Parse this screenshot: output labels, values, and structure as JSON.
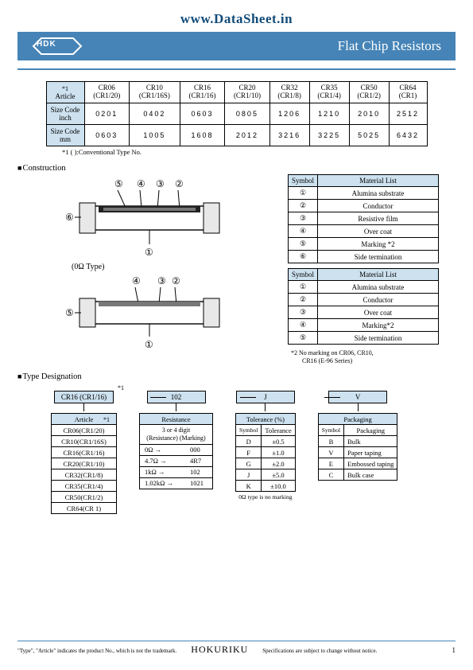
{
  "website": "www.DataSheet.in",
  "logo": "HDK",
  "title": "Flat Chip Resistors",
  "main_table": {
    "header_note": "*1",
    "row_labels": [
      "Article",
      "Size Code inch",
      "Size Code mm"
    ],
    "cols": [
      {
        "art": "CR06",
        "conv": "(CR1/20)",
        "inch": "0201",
        "mm": "0603"
      },
      {
        "art": "CR10",
        "conv": "(CR1/16S)",
        "inch": "0402",
        "mm": "1005"
      },
      {
        "art": "CR16",
        "conv": "(CR1/16)",
        "inch": "0603",
        "mm": "1608"
      },
      {
        "art": "CR20",
        "conv": "(CR1/10)",
        "inch": "0805",
        "mm": "2012"
      },
      {
        "art": "CR32",
        "conv": "(CR1/8)",
        "inch": "1206",
        "mm": "3216"
      },
      {
        "art": "CR35",
        "conv": "(CR1/4)",
        "inch": "1210",
        "mm": "3225"
      },
      {
        "art": "CR50",
        "conv": "(CR1/2)",
        "inch": "2010",
        "mm": "5025"
      },
      {
        "art": "CR64",
        "conv": "(CR1)",
        "inch": "2512",
        "mm": "6432"
      }
    ],
    "footnote": "*1 (  ):Conventional Type No."
  },
  "section_construction": "Construction",
  "zero_label": "(0Ω Type)",
  "material_table1": {
    "hdr_symbol": "Symbol",
    "hdr_mat": "Material List",
    "rows": [
      {
        "s": "①",
        "m": "Alumina substrate"
      },
      {
        "s": "②",
        "m": "Conductor"
      },
      {
        "s": "③",
        "m": "Resistive film"
      },
      {
        "s": "④",
        "m": "Over coat"
      },
      {
        "s": "⑤",
        "m": "Marking *2"
      },
      {
        "s": "⑥",
        "m": "Side termination"
      }
    ]
  },
  "material_table2": {
    "hdr_symbol": "Symbol",
    "hdr_mat": "Material List",
    "rows": [
      {
        "s": "①",
        "m": "Alumina substrate"
      },
      {
        "s": "②",
        "m": "Conductor"
      },
      {
        "s": "③",
        "m": "Over coat"
      },
      {
        "s": "④",
        "m": "Marking*2"
      },
      {
        "s": "⑤",
        "m": "Side termination"
      }
    ]
  },
  "note2_a": "*2 No marking on CR06, CR10,",
  "note2_b": "CR16 (E-96 Series)",
  "section_type": "Type Designation",
  "star1": "*1",
  "designation": {
    "heads": [
      "CR16 (CR1/16)",
      "102",
      "J",
      "V"
    ]
  },
  "article_table": {
    "hdr": "Article",
    "note": "*1",
    "rows": [
      "CR06(CR1/20)",
      "CR10(CR1/16S)",
      "CR16(CR1/16)",
      "CR20(CR1/10)",
      "CR32(CR1/8)",
      "CR35(CR1/4)",
      "CR50(CR1/2)",
      "CR64(CR 1)"
    ]
  },
  "resistance_table": {
    "hdr": "Resistance",
    "desc": "3 or 4 digit",
    "desc2": "(Resistance)   (Marking)",
    "rows": [
      {
        "r": "0Ω",
        "m": "000"
      },
      {
        "r": "4.7Ω",
        "m": "4R7"
      },
      {
        "r": "1kΩ",
        "m": "102"
      },
      {
        "r": "1.02kΩ",
        "m": "1021"
      }
    ]
  },
  "tolerance_table": {
    "hdr": "Tolerance (%)",
    "sub_hdr_s": "Symbol",
    "sub_hdr_t": "Tolerance",
    "rows": [
      {
        "s": "D",
        "t": "±0.5"
      },
      {
        "s": "F",
        "t": "±1.0"
      },
      {
        "s": "G",
        "t": "±2.0"
      },
      {
        "s": "J",
        "t": "±5.0"
      },
      {
        "s": "K",
        "t": "±10.0"
      }
    ],
    "note": "0Ω type is no marking"
  },
  "packaging_table": {
    "hdr": "Packaging",
    "sub_hdr_s": "Symbol",
    "sub_hdr_p": "Packaging",
    "rows": [
      {
        "s": "B",
        "p": "Bulk"
      },
      {
        "s": "V",
        "p": "Paper taping"
      },
      {
        "s": "E",
        "p": "Embossed taping"
      },
      {
        "s": "C",
        "p": "Bulk case"
      }
    ]
  },
  "footer": {
    "left": "\"Type\", \"Article\" indicates the product No., which is not the trademark.",
    "center": "HOKURIKU",
    "right": "Specifications are subject to change without notice.",
    "page": "1"
  },
  "colors": {
    "brand": "#4684b7",
    "head_bg": "#cde1ef"
  }
}
